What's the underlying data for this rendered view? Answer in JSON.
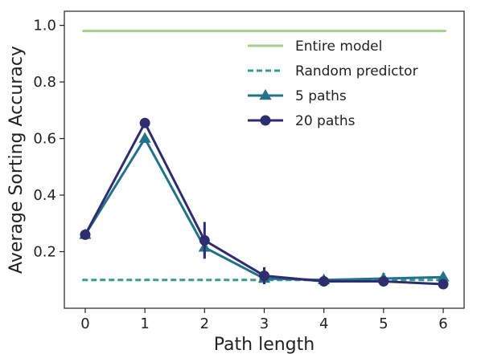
{
  "chart_data": {
    "type": "line",
    "title": "",
    "xlabel": "Path length",
    "ylabel": "Average Sorting Accuracy",
    "xlim": [
      -0.35,
      6.35
    ],
    "ylim": [
      0.0,
      1.05
    ],
    "xticks": [
      0,
      1,
      2,
      3,
      4,
      5,
      6
    ],
    "xtick_labels": [
      "0",
      "1",
      "2",
      "3",
      "4",
      "5",
      "6"
    ],
    "yticks": [
      0.2,
      0.4,
      0.6,
      0.8,
      1.0
    ],
    "ytick_labels": [
      "0.2",
      "0.4",
      "0.6",
      "0.8",
      "1.0"
    ],
    "grid": false,
    "legend_position": "top-right",
    "series": [
      {
        "name": "Entire model",
        "kind": "hline",
        "color": "#a6d08a",
        "style": "solid",
        "x": [
          -0.05,
          6.05
        ],
        "values": [
          0.98,
          0.98
        ]
      },
      {
        "name": "Random predictor",
        "kind": "hline",
        "color": "#3a9a8c",
        "style": "dashed",
        "x": [
          -0.05,
          6.05
        ],
        "values": [
          0.1,
          0.1
        ]
      },
      {
        "name": "5 paths",
        "kind": "line",
        "color": "#24718a",
        "marker": "triangle",
        "x": [
          0,
          1,
          2,
          3,
          4,
          5,
          6
        ],
        "values": [
          0.26,
          0.6,
          0.215,
          0.105,
          0.1,
          0.105,
          0.11
        ],
        "errors": [
          0.0,
          0.015,
          0.035,
          0.015,
          0.01,
          0.02,
          0.01
        ]
      },
      {
        "name": "20 paths",
        "kind": "line",
        "color": "#2e2d6e",
        "marker": "circle",
        "x": [
          0,
          1,
          2,
          3,
          4,
          5,
          6
        ],
        "values": [
          0.26,
          0.655,
          0.24,
          0.115,
          0.095,
          0.095,
          0.085
        ],
        "errors": [
          0.0,
          0.01,
          0.065,
          0.03,
          0.01,
          0.01,
          0.01
        ]
      }
    ]
  }
}
